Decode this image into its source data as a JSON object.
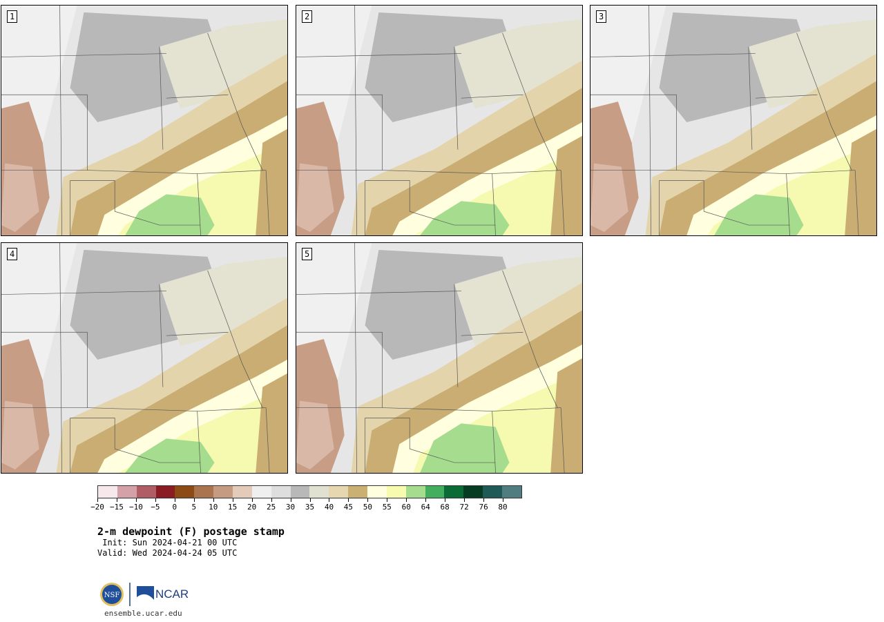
{
  "panels": [
    {
      "label": "1",
      "variant": 0
    },
    {
      "label": "2",
      "variant": 1
    },
    {
      "label": "3",
      "variant": 2
    },
    {
      "label": "4",
      "variant": 3
    },
    {
      "label": "5",
      "variant": 4
    }
  ],
  "colorbar": {
    "colors": [
      "#f7e9eb",
      "#d4a1a8",
      "#b15d66",
      "#8a1c24",
      "#8c4a14",
      "#a9744e",
      "#c59c82",
      "#e4cbb9",
      "#efefef",
      "#dedede",
      "#b8b8b8",
      "#e1e1d2",
      "#e6d7b0",
      "#cbb074",
      "#ffffe0",
      "#f6fbb0",
      "#a6dc8e",
      "#43ae5e",
      "#0a6b35",
      "#063d22",
      "#1f5a57",
      "#4f7d80"
    ],
    "tick_labels": [
      "−20",
      "−15",
      "−10",
      "−5",
      "0",
      "5",
      "10",
      "15",
      "20",
      "25",
      "30",
      "35",
      "40",
      "45",
      "50",
      "55",
      "60",
      "64",
      "68",
      "72",
      "76",
      "80"
    ]
  },
  "title": "2-m dewpoint (F) postage stamp",
  "init": " Init: Sun 2024-04-21 00 UTC",
  "valid": "Valid: Wed 2024-04-24 05 UTC",
  "logo": {
    "nsf": "NSF",
    "ncar": "NCAR"
  },
  "site": "ensemble.ucar.edu"
}
